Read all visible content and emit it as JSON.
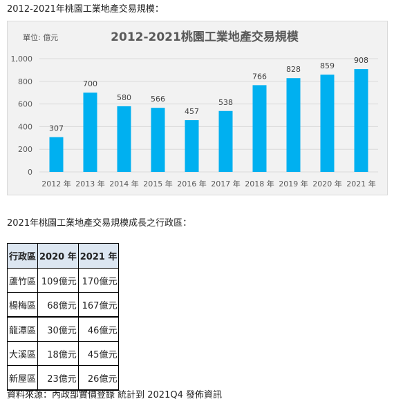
{
  "chart_heading": "2012-2021年桃園工業地產交易規模：",
  "chart_data": {
    "type": "bar",
    "title": "2012-2021桃園工業地產交易規模",
    "unit_label": "單位: 億元",
    "categories": [
      "2012 年",
      "2013 年",
      "2014 年",
      "2015 年",
      "2016 年",
      "2017 年",
      "2018 年",
      "2019 年",
      "2020 年",
      "2021 年"
    ],
    "values": [
      307,
      700,
      580,
      566,
      457,
      538,
      766,
      828,
      859,
      908
    ],
    "ylim": [
      0,
      1000
    ],
    "yticks": [
      "0",
      "200",
      "400",
      "600",
      "800",
      "1,000"
    ],
    "grid": true,
    "bar_color": "#00b0f0"
  },
  "table_heading": "2021年桃園工業地產交易規模成長之行政區：",
  "table": {
    "headers": [
      "行政區",
      "2020 年",
      "2021 年"
    ],
    "rows": [
      [
        "蘆竹區",
        "109億元",
        "170億元"
      ],
      [
        "楊梅區",
        "68億元",
        "167億元"
      ],
      [
        "龍潭區",
        "30億元",
        "46億元"
      ],
      [
        "大溪區",
        "18億元",
        "45億元"
      ],
      [
        "新屋區",
        "23億元",
        "26億元"
      ]
    ]
  },
  "source": "資料來源：內政部實價登錄 統計到 2021Q4 發佈資訊"
}
